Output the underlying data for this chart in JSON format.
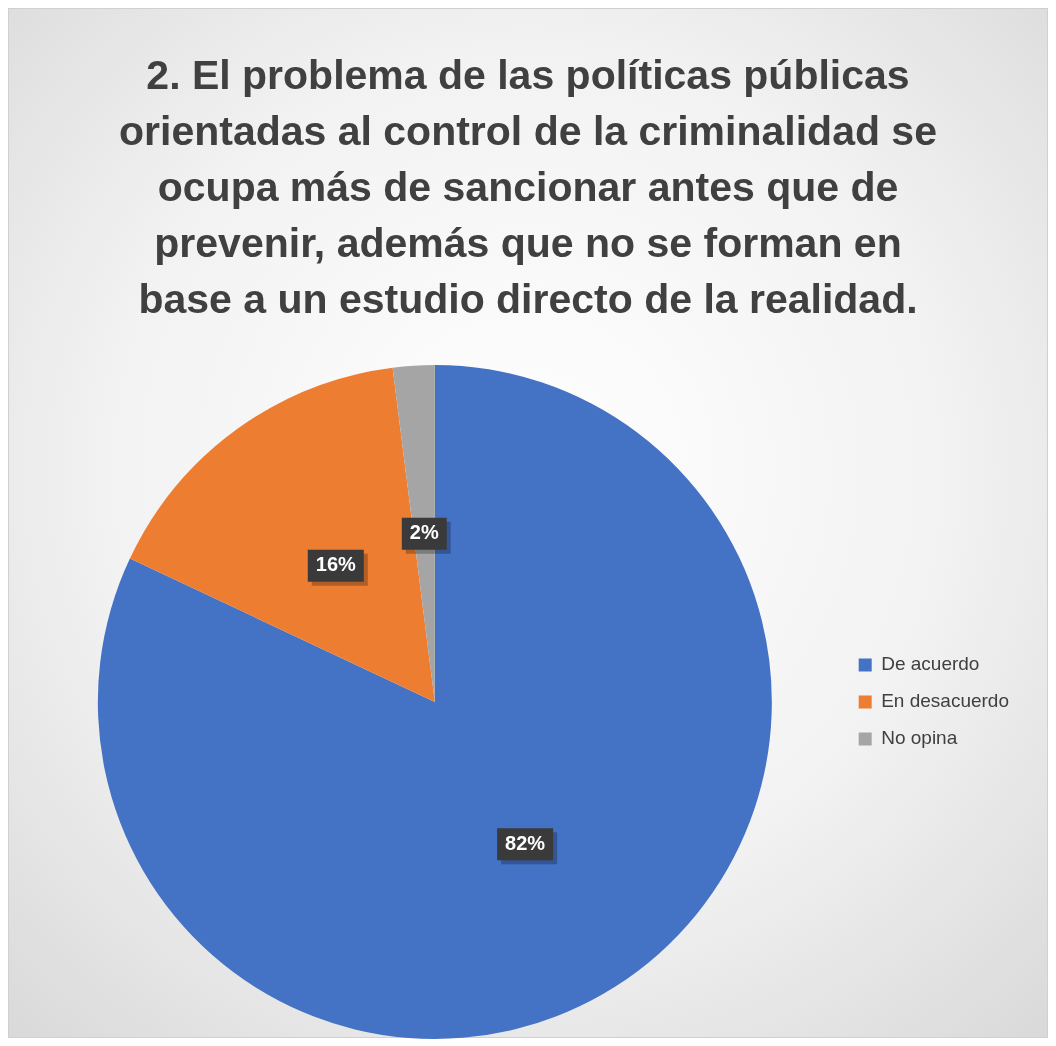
{
  "chart_data": {
    "type": "pie",
    "title": "2. El problema de las políticas públicas orientadas al control de la criminalidad se ocupa más de sancionar antes que de prevenir, además que no se forman en base a un estudio directo de la realidad.",
    "categories": [
      "De acuerdo",
      "En desacuerdo",
      "No opina"
    ],
    "values": [
      82,
      16,
      2
    ],
    "colors": [
      "#4472c4",
      "#ed7d31",
      "#a5a5a5"
    ],
    "value_labels": [
      "82%",
      "16%",
      "2%"
    ],
    "legend": "right"
  }
}
